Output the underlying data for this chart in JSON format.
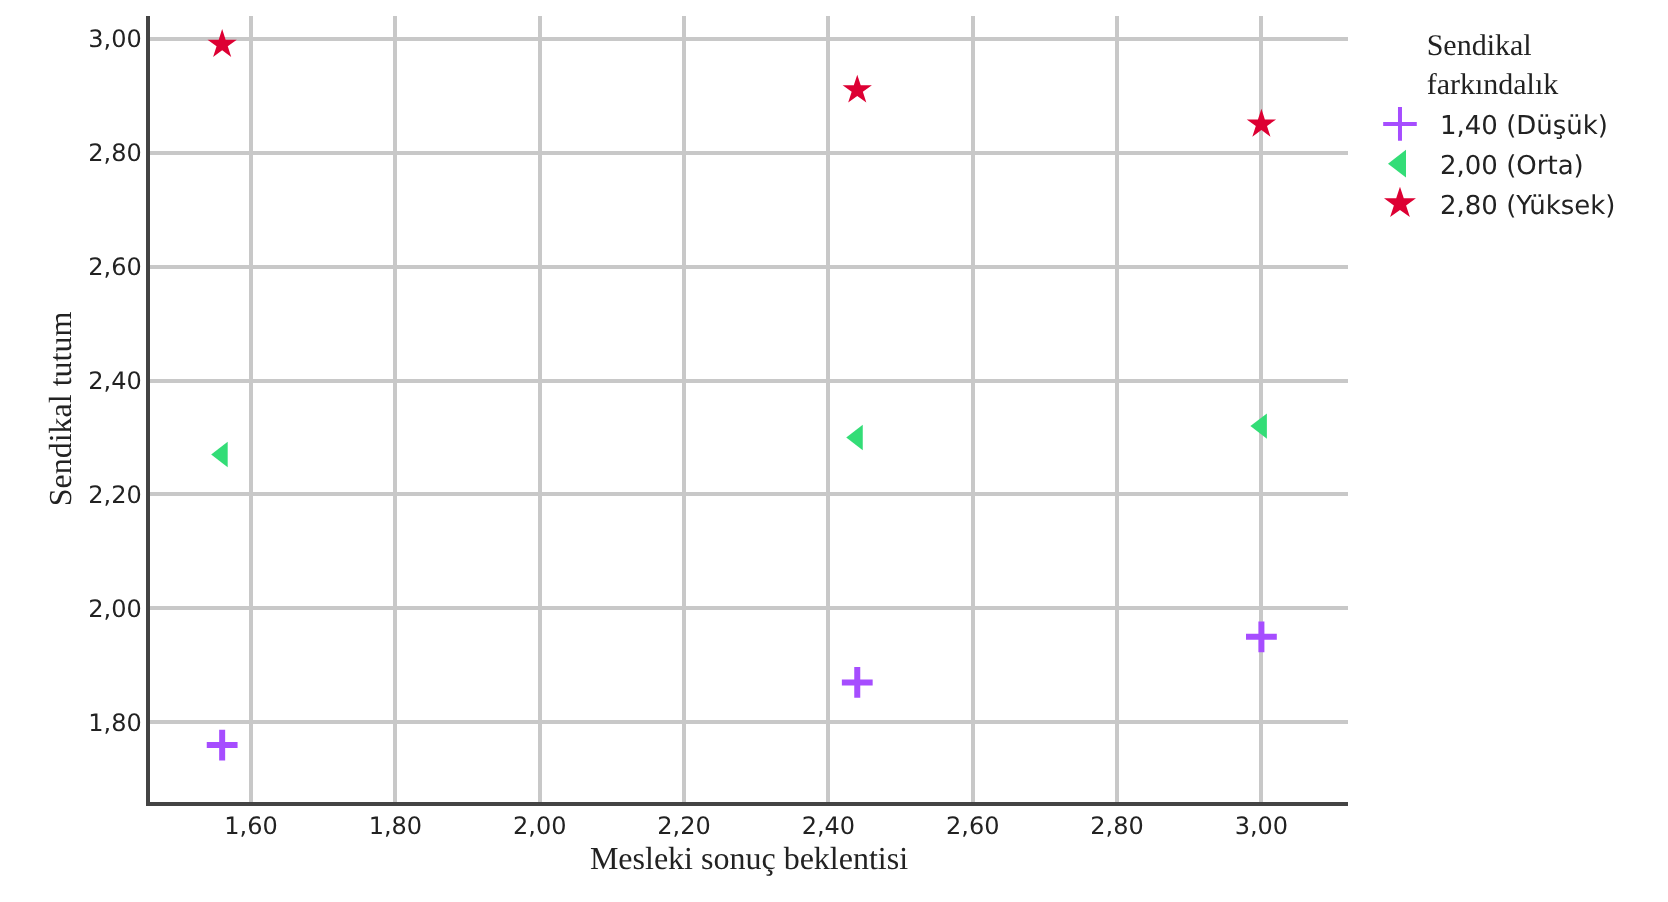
{
  "chart_data": {
    "type": "scatter",
    "xlabel": "Mesleki sonuç beklentisi",
    "ylabel": "Sendikal tutum",
    "legend_title": "Sendikal farkındalık",
    "legend": "top right",
    "grid": true,
    "xlim": [
      1.46,
      3.12
    ],
    "ylim": [
      1.66,
      3.04
    ],
    "xticks": [
      {
        "value": 1.6,
        "label": "1,60"
      },
      {
        "value": 1.8,
        "label": "1,80"
      },
      {
        "value": 2.0,
        "label": "2,00"
      },
      {
        "value": 2.2,
        "label": "2,20"
      },
      {
        "value": 2.4,
        "label": "2,40"
      },
      {
        "value": 2.6,
        "label": "2,60"
      },
      {
        "value": 2.8,
        "label": "2,80"
      },
      {
        "value": 3.0,
        "label": "3,00"
      }
    ],
    "yticks": [
      {
        "value": 1.8,
        "label": "1,80"
      },
      {
        "value": 2.0,
        "label": "2,00"
      },
      {
        "value": 2.2,
        "label": "2,20"
      },
      {
        "value": 2.4,
        "label": "2,40"
      },
      {
        "value": 2.6,
        "label": "2,60"
      },
      {
        "value": 2.8,
        "label": "2,80"
      },
      {
        "value": 3.0,
        "label": "3,00"
      }
    ],
    "x": [
      1.56,
      2.44,
      3.0
    ],
    "series": [
      {
        "name": "1,40 (Düşük)",
        "color": "#a64dff",
        "marker": "cross",
        "values": [
          1.76,
          1.87,
          1.95
        ]
      },
      {
        "name": "2,00 (Orta)",
        "color": "#33dd77",
        "marker": "triangle",
        "values": [
          2.27,
          2.3,
          2.32
        ]
      },
      {
        "name": "2,80 (Yüksek)",
        "color": "#dd0033",
        "marker": "star",
        "values": [
          2.99,
          2.91,
          2.85
        ]
      }
    ]
  }
}
